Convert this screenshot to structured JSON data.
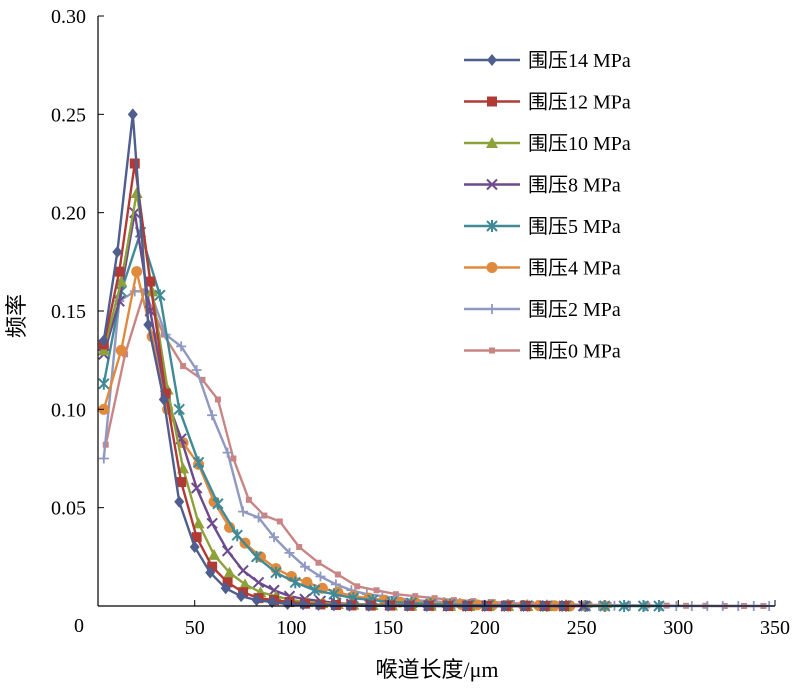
{
  "chart_data": {
    "type": "line",
    "title": "",
    "xlabel": "喉道长度/μm",
    "ylabel": "频率",
    "xlim": [
      0,
      350
    ],
    "ylim": [
      0,
      0.3
    ],
    "x_ticks": [
      50,
      100,
      150,
      200,
      250,
      300,
      350
    ],
    "x_tick_labels": [
      "50",
      "100",
      "150",
      "200",
      "250",
      "300",
      "350"
    ],
    "y_ticks": [
      0,
      0.05,
      0.1,
      0.15,
      0.2,
      0.25,
      0.3
    ],
    "y_tick_labels": [
      "0",
      "0.05",
      "0.10",
      "0.15",
      "0.20",
      "0.25",
      "0.30"
    ],
    "grid": false,
    "legend_position": "top-right",
    "series": [
      {
        "name": "围压14 MPa",
        "color": "#4F5E8E",
        "marker": "diamond",
        "x": [
          3,
          10,
          18,
          26,
          34,
          42,
          50,
          58,
          66,
          74,
          82,
          90,
          98,
          106,
          114,
          122,
          130,
          140,
          150,
          160,
          170,
          180,
          190,
          200,
          210,
          220,
          230,
          240
        ],
        "y": [
          0.135,
          0.18,
          0.25,
          0.143,
          0.105,
          0.053,
          0.03,
          0.017,
          0.009,
          0.005,
          0.003,
          0.002,
          0.001,
          0.0008,
          0.0005,
          0.0003,
          0.0002,
          0.0001,
          0.0001,
          0.0001,
          0,
          0,
          0,
          0,
          0,
          0,
          0,
          0
        ]
      },
      {
        "name": "围压12 MPa",
        "color": "#B03A36",
        "marker": "square",
        "x": [
          3,
          11,
          19,
          27,
          35,
          43,
          51,
          59,
          67,
          75,
          83,
          91,
          99,
          107,
          115,
          123,
          131,
          141,
          151,
          161,
          171,
          181,
          191,
          201,
          211,
          221,
          231,
          241
        ],
        "y": [
          0.133,
          0.17,
          0.225,
          0.165,
          0.108,
          0.063,
          0.035,
          0.02,
          0.012,
          0.007,
          0.004,
          0.003,
          0.002,
          0.0012,
          0.0008,
          0.0005,
          0.0003,
          0.0002,
          0.0002,
          0.0001,
          0.0001,
          0,
          0,
          0,
          0,
          0,
          0,
          0
        ]
      },
      {
        "name": "围压10 MPa",
        "color": "#8DA13A",
        "marker": "triangle",
        "x": [
          3,
          12,
          20,
          28,
          36,
          44,
          52,
          60,
          68,
          76,
          84,
          92,
          100,
          108,
          116,
          124,
          132,
          142,
          152,
          162,
          172,
          182,
          192,
          202,
          212,
          222,
          232,
          242
        ],
        "y": [
          0.13,
          0.165,
          0.21,
          0.16,
          0.11,
          0.07,
          0.042,
          0.026,
          0.017,
          0.011,
          0.007,
          0.005,
          0.003,
          0.002,
          0.0015,
          0.001,
          0.0007,
          0.0005,
          0.0003,
          0.0002,
          0.0001,
          0,
          0,
          0,
          0,
          0,
          0,
          0
        ]
      },
      {
        "name": "围压8 MPa",
        "color": "#6C4A8C",
        "marker": "x",
        "x": [
          3,
          11,
          19,
          27,
          35,
          43,
          51,
          59,
          67,
          75,
          83,
          91,
          99,
          107,
          115,
          123,
          131,
          141,
          151,
          161,
          171,
          181,
          191,
          201,
          211,
          221,
          231,
          241,
          251
        ],
        "y": [
          0.128,
          0.155,
          0.2,
          0.15,
          0.107,
          0.085,
          0.06,
          0.042,
          0.028,
          0.018,
          0.012,
          0.008,
          0.005,
          0.0035,
          0.0025,
          0.0015,
          0.001,
          0.0007,
          0.0005,
          0.0003,
          0.0002,
          0.0001,
          0,
          0,
          0,
          0,
          0,
          0,
          0
        ]
      },
      {
        "name": "围压5 MPa",
        "color": "#3F8A96",
        "marker": "asterisk",
        "x": [
          3,
          12,
          22,
          32,
          42,
          52,
          62,
          72,
          82,
          92,
          102,
          112,
          122,
          132,
          142,
          152,
          162,
          172,
          182,
          192,
          202,
          212,
          222,
          232,
          242,
          252,
          262,
          272,
          282,
          290
        ],
        "y": [
          0.113,
          0.16,
          0.19,
          0.158,
          0.1,
          0.073,
          0.052,
          0.036,
          0.025,
          0.017,
          0.012,
          0.008,
          0.006,
          0.004,
          0.003,
          0.002,
          0.0015,
          0.001,
          0.0008,
          0.0005,
          0.0004,
          0.0003,
          0.0002,
          0.0001,
          0.0001,
          0,
          0,
          0,
          0,
          0
        ]
      },
      {
        "name": "围压4 MPa",
        "color": "#E08A3E",
        "marker": "circle",
        "x": [
          3,
          12,
          20,
          28,
          36,
          44,
          52,
          60,
          68,
          76,
          84,
          92,
          100,
          108,
          116,
          124,
          132,
          140,
          148,
          156,
          164,
          172,
          180,
          188,
          196,
          204,
          212,
          220,
          228,
          236,
          244,
          252,
          262
        ],
        "y": [
          0.1,
          0.13,
          0.17,
          0.137,
          0.1,
          0.083,
          0.072,
          0.053,
          0.04,
          0.032,
          0.025,
          0.019,
          0.015,
          0.012,
          0.009,
          0.007,
          0.005,
          0.004,
          0.003,
          0.002,
          0.0018,
          0.0014,
          0.001,
          0.0008,
          0.0006,
          0.0005,
          0.0004,
          0.0003,
          0.0002,
          0.0001,
          0.0001,
          0,
          0
        ]
      },
      {
        "name": "围压2 MPa",
        "color": "#8F98C1",
        "marker": "plus",
        "x": [
          3,
          11,
          19,
          27,
          35,
          43,
          51,
          59,
          67,
          75,
          83,
          91,
          99,
          107,
          115,
          123,
          131,
          139,
          147,
          155,
          163,
          171,
          179,
          187,
          195,
          203,
          211,
          219,
          227,
          235,
          243,
          251,
          259,
          267,
          275,
          283,
          291,
          299,
          307,
          315,
          323,
          331,
          339,
          347
        ],
        "y": [
          0.075,
          0.155,
          0.16,
          0.16,
          0.138,
          0.132,
          0.12,
          0.097,
          0.078,
          0.048,
          0.045,
          0.035,
          0.027,
          0.02,
          0.015,
          0.011,
          0.008,
          0.006,
          0.005,
          0.004,
          0.003,
          0.0025,
          0.002,
          0.0015,
          0.001,
          0.0008,
          0.0006,
          0.0005,
          0.0004,
          0.0003,
          0.0002,
          0.0002,
          0.0001,
          0.0001,
          0.0001,
          0,
          0,
          0,
          0,
          0,
          0,
          0,
          0,
          0
        ]
      },
      {
        "name": "围压0 MPa",
        "color": "#C98584",
        "marker": "small-square",
        "x": [
          4,
          14,
          24,
          34,
          44,
          54,
          62,
          70,
          78,
          86,
          94,
          104,
          114,
          124,
          134,
          144,
          154,
          164,
          174,
          184,
          194,
          204,
          214,
          224,
          234,
          244,
          254,
          264,
          274,
          284,
          294,
          304,
          314,
          324,
          334,
          344
        ],
        "y": [
          0.082,
          0.128,
          0.16,
          0.138,
          0.122,
          0.115,
          0.105,
          0.075,
          0.054,
          0.046,
          0.043,
          0.03,
          0.022,
          0.016,
          0.01,
          0.008,
          0.006,
          0.005,
          0.004,
          0.003,
          0.0025,
          0.002,
          0.0015,
          0.001,
          0.001,
          0.0008,
          0.0006,
          0.0005,
          0.0004,
          0.0003,
          0.0002,
          0.0001,
          0.0001,
          0,
          0,
          0
        ]
      }
    ]
  }
}
